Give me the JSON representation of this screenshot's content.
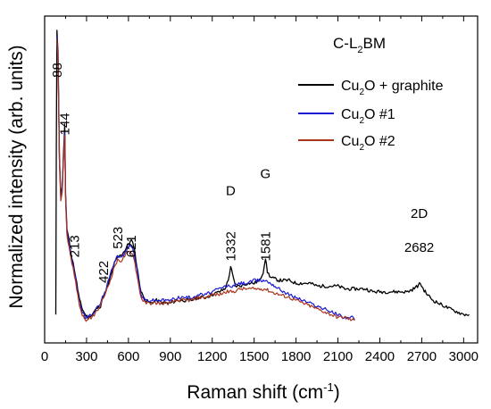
{
  "chart_data": {
    "type": "line",
    "title": "C-L2BM",
    "title_parts": {
      "main": "C-L",
      "sub": "2",
      "tail": "BM"
    },
    "xlabel": "Raman shift (cm",
    "xlabel_sup": "-1",
    "xlabel_tail": ")",
    "ylabel": "Normalized intensity (arb. units)",
    "xlim": [
      0,
      3100
    ],
    "ylim": [
      -0.1,
      1.05
    ],
    "grid": false,
    "legend_position": "top-right",
    "x_ticks": [
      0,
      300,
      600,
      900,
      1200,
      1500,
      1800,
      2100,
      2400,
      2700,
      3000
    ],
    "x_tick_labels": [
      "0",
      "300",
      "600",
      "900",
      "1200",
      "1500",
      "1800",
      "2100",
      "2400",
      "2700",
      "3000"
    ],
    "annotations": [
      {
        "text": "88",
        "x": 88,
        "y": 0.86,
        "rotate": true
      },
      {
        "text": "144",
        "x": 144,
        "y": 0.67,
        "rotate": true
      },
      {
        "text": "213",
        "x": 213,
        "y": 0.24,
        "rotate": true
      },
      {
        "text": "422",
        "x": 422,
        "y": 0.15,
        "rotate": true
      },
      {
        "text": "523",
        "x": 523,
        "y": 0.27,
        "rotate": true
      },
      {
        "text": "621",
        "x": 621,
        "y": 0.24,
        "rotate": true
      },
      {
        "text": "1332",
        "x": 1332,
        "y": 0.24,
        "rotate": true
      },
      {
        "text": "1581",
        "x": 1581,
        "y": 0.24,
        "rotate": true
      },
      {
        "text": "2682",
        "x": 2682,
        "y": 0.22,
        "rotate": false
      },
      {
        "text": "D",
        "x": 1332,
        "y": 0.42,
        "rotate": false
      },
      {
        "text": "G",
        "x": 1581,
        "y": 0.48,
        "rotate": false
      },
      {
        "text": "2D",
        "x": 2682,
        "y": 0.34,
        "rotate": false
      }
    ],
    "series": [
      {
        "name": "Cu2O + graphite",
        "legend_parts": {
          "main": "Cu",
          "sub": "2",
          "tail": "O + graphite"
        },
        "color": "#000000",
        "stroke_width": 1.3,
        "points": [
          [
            80,
            0.0
          ],
          [
            84,
            0.6
          ],
          [
            88,
            1.0
          ],
          [
            96,
            0.92
          ],
          [
            106,
            0.55
          ],
          [
            116,
            0.42
          ],
          [
            126,
            0.45
          ],
          [
            134,
            0.56
          ],
          [
            140,
            0.62
          ],
          [
            144,
            0.67
          ],
          [
            150,
            0.42
          ],
          [
            160,
            0.3
          ],
          [
            175,
            0.26
          ],
          [
            195,
            0.2
          ],
          [
            213,
            0.16
          ],
          [
            230,
            0.11
          ],
          [
            250,
            0.05
          ],
          [
            270,
            0.02
          ],
          [
            290,
            0.0
          ],
          [
            310,
            -0.01
          ],
          [
            340,
            0.0
          ],
          [
            370,
            0.02
          ],
          [
            400,
            0.03
          ],
          [
            422,
            0.07
          ],
          [
            440,
            0.08
          ],
          [
            470,
            0.13
          ],
          [
            500,
            0.18
          ],
          [
            523,
            0.2
          ],
          [
            550,
            0.21
          ],
          [
            580,
            0.23
          ],
          [
            600,
            0.25
          ],
          [
            621,
            0.26
          ],
          [
            640,
            0.24
          ],
          [
            660,
            0.17
          ],
          [
            690,
            0.08
          ],
          [
            720,
            0.05
          ],
          [
            760,
            0.04
          ],
          [
            800,
            0.05
          ],
          [
            850,
            0.04
          ],
          [
            900,
            0.04
          ],
          [
            950,
            0.05
          ],
          [
            1000,
            0.05
          ],
          [
            1050,
            0.05
          ],
          [
            1100,
            0.06
          ],
          [
            1150,
            0.06
          ],
          [
            1200,
            0.07
          ],
          [
            1250,
            0.08
          ],
          [
            1290,
            0.09
          ],
          [
            1315,
            0.12
          ],
          [
            1332,
            0.17
          ],
          [
            1345,
            0.14
          ],
          [
            1365,
            0.1
          ],
          [
            1400,
            0.1
          ],
          [
            1450,
            0.11
          ],
          [
            1500,
            0.11
          ],
          [
            1540,
            0.12
          ],
          [
            1565,
            0.15
          ],
          [
            1581,
            0.2
          ],
          [
            1595,
            0.15
          ],
          [
            1620,
            0.13
          ],
          [
            1680,
            0.12
          ],
          [
            1750,
            0.12
          ],
          [
            1800,
            0.11
          ],
          [
            1850,
            0.11
          ],
          [
            1900,
            0.11
          ],
          [
            1950,
            0.1
          ],
          [
            2000,
            0.1
          ],
          [
            2050,
            0.1
          ],
          [
            2100,
            0.1
          ],
          [
            2150,
            0.09
          ],
          [
            2200,
            0.09
          ],
          [
            2250,
            0.09
          ],
          [
            2300,
            0.09
          ],
          [
            2350,
            0.08
          ],
          [
            2400,
            0.08
          ],
          [
            2450,
            0.08
          ],
          [
            2500,
            0.08
          ],
          [
            2550,
            0.08
          ],
          [
            2600,
            0.08
          ],
          [
            2640,
            0.09
          ],
          [
            2670,
            0.1
          ],
          [
            2690,
            0.11
          ],
          [
            2710,
            0.09
          ],
          [
            2740,
            0.07
          ],
          [
            2780,
            0.05
          ],
          [
            2820,
            0.04
          ],
          [
            2860,
            0.03
          ],
          [
            2900,
            0.02
          ],
          [
            2950,
            0.01
          ],
          [
            3000,
            0.0
          ],
          [
            3040,
            0.0
          ]
        ]
      },
      {
        "name": "Cu2O #1",
        "legend_parts": {
          "main": "Cu",
          "sub": "2",
          "tail": "O #1"
        },
        "color": "#1a1ad6",
        "stroke_width": 1.2,
        "points": [
          [
            88,
            0.98
          ],
          [
            96,
            0.9
          ],
          [
            106,
            0.54
          ],
          [
            116,
            0.41
          ],
          [
            126,
            0.44
          ],
          [
            134,
            0.55
          ],
          [
            144,
            0.64
          ],
          [
            150,
            0.41
          ],
          [
            160,
            0.29
          ],
          [
            175,
            0.25
          ],
          [
            195,
            0.19
          ],
          [
            213,
            0.15
          ],
          [
            230,
            0.1
          ],
          [
            250,
            0.04
          ],
          [
            270,
            0.01
          ],
          [
            290,
            -0.01
          ],
          [
            310,
            -0.01
          ],
          [
            340,
            0.0
          ],
          [
            370,
            0.02
          ],
          [
            400,
            0.04
          ],
          [
            422,
            0.07
          ],
          [
            440,
            0.09
          ],
          [
            470,
            0.14
          ],
          [
            500,
            0.19
          ],
          [
            523,
            0.21
          ],
          [
            550,
            0.2
          ],
          [
            580,
            0.22
          ],
          [
            600,
            0.24
          ],
          [
            621,
            0.24
          ],
          [
            640,
            0.22
          ],
          [
            660,
            0.16
          ],
          [
            690,
            0.07
          ],
          [
            720,
            0.05
          ],
          [
            760,
            0.05
          ],
          [
            800,
            0.05
          ],
          [
            850,
            0.05
          ],
          [
            900,
            0.05
          ],
          [
            950,
            0.06
          ],
          [
            1000,
            0.06
          ],
          [
            1050,
            0.06
          ],
          [
            1100,
            0.07
          ],
          [
            1150,
            0.07
          ],
          [
            1200,
            0.08
          ],
          [
            1250,
            0.09
          ],
          [
            1300,
            0.1
          ],
          [
            1350,
            0.1
          ],
          [
            1400,
            0.11
          ],
          [
            1450,
            0.11
          ],
          [
            1500,
            0.12
          ],
          [
            1550,
            0.12
          ],
          [
            1580,
            0.12
          ],
          [
            1620,
            0.11
          ],
          [
            1680,
            0.09
          ],
          [
            1750,
            0.07
          ],
          [
            1800,
            0.06
          ],
          [
            1850,
            0.05
          ],
          [
            1900,
            0.04
          ],
          [
            1950,
            0.03
          ],
          [
            2000,
            0.02
          ],
          [
            2050,
            0.01
          ],
          [
            2100,
            0.0
          ],
          [
            2150,
            -0.01
          ],
          [
            2200,
            -0.01
          ],
          [
            2220,
            -0.02
          ]
        ]
      },
      {
        "name": "Cu2O #2",
        "legend_parts": {
          "main": "Cu",
          "sub": "2",
          "tail": "O #2"
        },
        "color": "#a8341c",
        "stroke_width": 1.2,
        "points": [
          [
            88,
            0.97
          ],
          [
            96,
            0.89
          ],
          [
            106,
            0.53
          ],
          [
            116,
            0.4
          ],
          [
            126,
            0.43
          ],
          [
            134,
            0.54
          ],
          [
            144,
            0.63
          ],
          [
            150,
            0.4
          ],
          [
            160,
            0.28
          ],
          [
            175,
            0.24
          ],
          [
            195,
            0.18
          ],
          [
            213,
            0.14
          ],
          [
            230,
            0.09
          ],
          [
            250,
            0.03
          ],
          [
            270,
            0.0
          ],
          [
            290,
            -0.02
          ],
          [
            310,
            -0.02
          ],
          [
            340,
            -0.01
          ],
          [
            370,
            0.01
          ],
          [
            400,
            0.03
          ],
          [
            422,
            0.06
          ],
          [
            440,
            0.08
          ],
          [
            470,
            0.12
          ],
          [
            500,
            0.17
          ],
          [
            523,
            0.19
          ],
          [
            550,
            0.19
          ],
          [
            580,
            0.21
          ],
          [
            600,
            0.22
          ],
          [
            621,
            0.22
          ],
          [
            640,
            0.2
          ],
          [
            660,
            0.14
          ],
          [
            690,
            0.06
          ],
          [
            720,
            0.04
          ],
          [
            760,
            0.04
          ],
          [
            800,
            0.04
          ],
          [
            850,
            0.04
          ],
          [
            900,
            0.04
          ],
          [
            950,
            0.05
          ],
          [
            1000,
            0.05
          ],
          [
            1050,
            0.05
          ],
          [
            1100,
            0.06
          ],
          [
            1150,
            0.06
          ],
          [
            1200,
            0.07
          ],
          [
            1250,
            0.07
          ],
          [
            1300,
            0.08
          ],
          [
            1350,
            0.08
          ],
          [
            1400,
            0.09
          ],
          [
            1450,
            0.09
          ],
          [
            1500,
            0.09
          ],
          [
            1550,
            0.09
          ],
          [
            1580,
            0.09
          ],
          [
            1620,
            0.08
          ],
          [
            1680,
            0.07
          ],
          [
            1750,
            0.06
          ],
          [
            1800,
            0.05
          ],
          [
            1850,
            0.04
          ],
          [
            1900,
            0.03
          ],
          [
            1950,
            0.02
          ],
          [
            2000,
            0.01
          ],
          [
            2050,
            0.0
          ],
          [
            2100,
            -0.01
          ],
          [
            2150,
            -0.01
          ],
          [
            2200,
            -0.02
          ],
          [
            2220,
            -0.02
          ]
        ]
      }
    ]
  }
}
